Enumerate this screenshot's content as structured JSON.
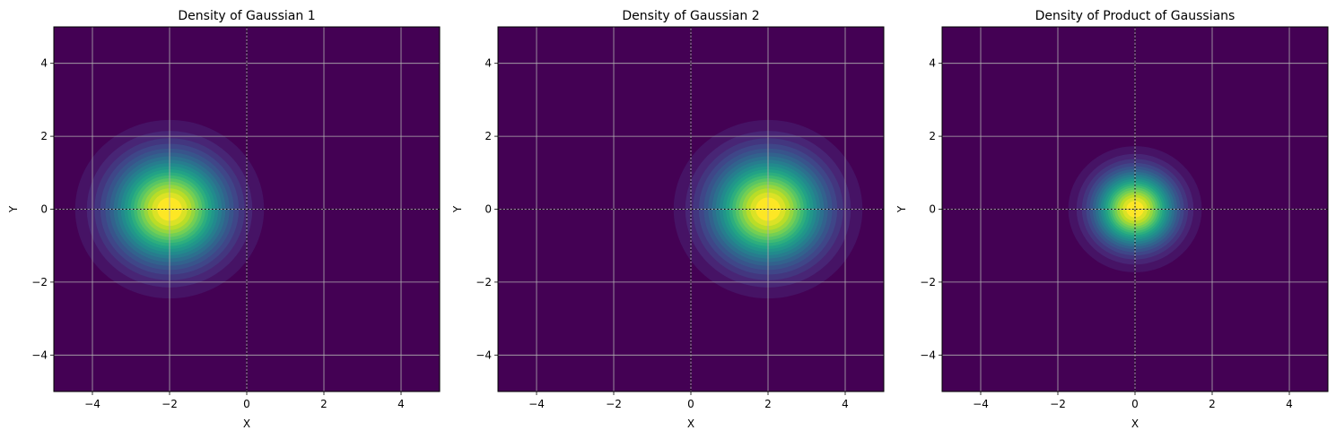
{
  "figure": {
    "background": "#ffffff",
    "colormap": "viridis",
    "colors": {
      "gridline": "#b0b0b0",
      "crosshair": "#000000",
      "background_level": "#440154"
    }
  },
  "chart_data": [
    {
      "type": "heatmap",
      "subtype": "filled-contour",
      "title": "Density of Gaussian 1",
      "xlabel": "X",
      "ylabel": "Y",
      "xlim": [
        -5,
        5
      ],
      "ylim": [
        -5,
        5
      ],
      "xticks": [
        -4,
        -2,
        0,
        2,
        4
      ],
      "yticks": [
        -4,
        -2,
        0,
        2,
        4
      ],
      "xtick_labels": [
        "−4",
        "−2",
        "0",
        "2",
        "4"
      ],
      "ytick_labels": [
        "−4",
        "−2",
        "0",
        "2",
        "4"
      ],
      "grid": true,
      "gaussian": {
        "mean": [
          -2,
          0
        ],
        "std": 1
      },
      "contour_levels": 20,
      "crosshair": {
        "x": 0,
        "y": 0,
        "style": "dotted",
        "color": "#000000"
      }
    },
    {
      "type": "heatmap",
      "subtype": "filled-contour",
      "title": "Density of Gaussian 2",
      "xlabel": "X",
      "ylabel": "Y",
      "xlim": [
        -5,
        5
      ],
      "ylim": [
        -5,
        5
      ],
      "xticks": [
        -4,
        -2,
        0,
        2,
        4
      ],
      "yticks": [
        -4,
        -2,
        0,
        2,
        4
      ],
      "xtick_labels": [
        "−4",
        "−2",
        "0",
        "2",
        "4"
      ],
      "ytick_labels": [
        "−4",
        "−2",
        "0",
        "2",
        "4"
      ],
      "grid": true,
      "gaussian": {
        "mean": [
          2,
          0
        ],
        "std": 1
      },
      "contour_levels": 20,
      "crosshair": {
        "x": 0,
        "y": 0,
        "style": "dotted",
        "color": "#000000"
      }
    },
    {
      "type": "heatmap",
      "subtype": "filled-contour",
      "title": "Density of Product of Gaussians",
      "xlabel": "X",
      "ylabel": "Y",
      "xlim": [
        -5,
        5
      ],
      "ylim": [
        -5,
        5
      ],
      "xticks": [
        -4,
        -2,
        0,
        2,
        4
      ],
      "yticks": [
        -4,
        -2,
        0,
        2,
        4
      ],
      "xtick_labels": [
        "−4",
        "−2",
        "0",
        "2",
        "4"
      ],
      "ytick_labels": [
        "−4",
        "−2",
        "0",
        "2",
        "4"
      ],
      "grid": true,
      "gaussian": {
        "mean": [
          0,
          0
        ],
        "std": 0.707
      },
      "contour_levels": 20,
      "crosshair": {
        "x": 0,
        "y": 0,
        "style": "dotted",
        "color": "#000000"
      }
    }
  ]
}
